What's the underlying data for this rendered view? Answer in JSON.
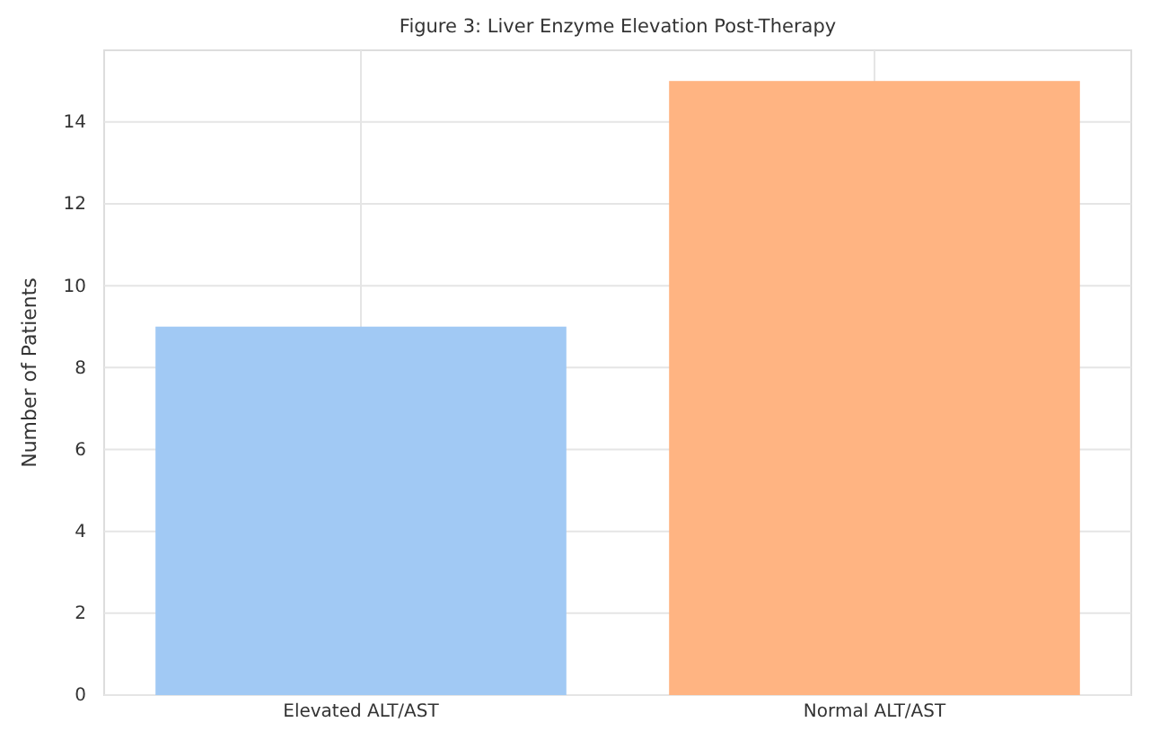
{
  "chart_data": {
    "type": "bar",
    "title": "Figure 3: Liver Enzyme Elevation Post-Therapy",
    "ylabel": "Number of Patients",
    "categories": [
      "Elevated ALT/AST",
      "Normal ALT/AST"
    ],
    "values": [
      9,
      15
    ],
    "colors": [
      "#a1c9f4",
      "#ffb482"
    ],
    "ylim": [
      0,
      15.75
    ],
    "yticks": [
      0,
      2,
      4,
      6,
      8,
      10,
      12,
      14
    ],
    "grid": true
  }
}
